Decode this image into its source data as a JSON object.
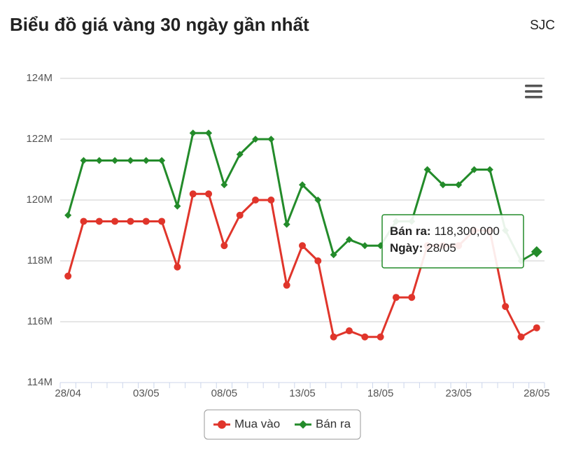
{
  "header": {
    "title": "Biểu đồ giá vàng 30 ngày gần nhất",
    "source": "SJC"
  },
  "chart_data": {
    "type": "line",
    "categories": [
      "28/04",
      null,
      null,
      null,
      null,
      "03/05",
      null,
      null,
      null,
      null,
      "08/05",
      null,
      null,
      null,
      null,
      "13/05",
      null,
      null,
      null,
      null,
      "18/05",
      null,
      null,
      null,
      null,
      "23/05",
      null,
      null,
      null,
      null,
      "28/05"
    ],
    "series": [
      {
        "name": "Mua vào",
        "color": "#e0352b",
        "marker": "circle",
        "values": [
          117500000,
          119300000,
          119300000,
          119300000,
          119300000,
          119300000,
          119300000,
          117800000,
          120200000,
          120200000,
          118500000,
          119500000,
          120000000,
          120000000,
          117200000,
          118500000,
          118000000,
          115500000,
          115700000,
          115500000,
          115500000,
          116800000,
          116800000,
          118500000,
          118500000,
          118500000,
          119000000,
          119000000,
          116500000,
          115500000,
          115800000
        ]
      },
      {
        "name": "Bán ra",
        "color": "#238b2a",
        "marker": "diamond",
        "values": [
          119500000,
          121300000,
          121300000,
          121300000,
          121300000,
          121300000,
          121300000,
          119800000,
          122200000,
          122200000,
          120500000,
          121500000,
          122000000,
          122000000,
          119200000,
          120500000,
          120000000,
          118200000,
          118700000,
          118500000,
          118500000,
          119300000,
          119300000,
          121000000,
          120500000,
          120500000,
          121000000,
          121000000,
          119000000,
          118000000,
          118300000
        ]
      }
    ],
    "ylim": [
      114000000,
      124000000
    ],
    "yticks": [
      {
        "value": 114000000,
        "label": "114M"
      },
      {
        "value": 116000000,
        "label": "116M"
      },
      {
        "value": 118000000,
        "label": "118M"
      },
      {
        "value": 120000000,
        "label": "120M"
      },
      {
        "value": 122000000,
        "label": "122M"
      },
      {
        "value": 124000000,
        "label": "124M"
      }
    ],
    "grid": true,
    "tooltip": {
      "series_label": "Bán ra:",
      "value_label": "118,300,000",
      "date_label": "Ngày:",
      "date": "28/05"
    }
  }
}
